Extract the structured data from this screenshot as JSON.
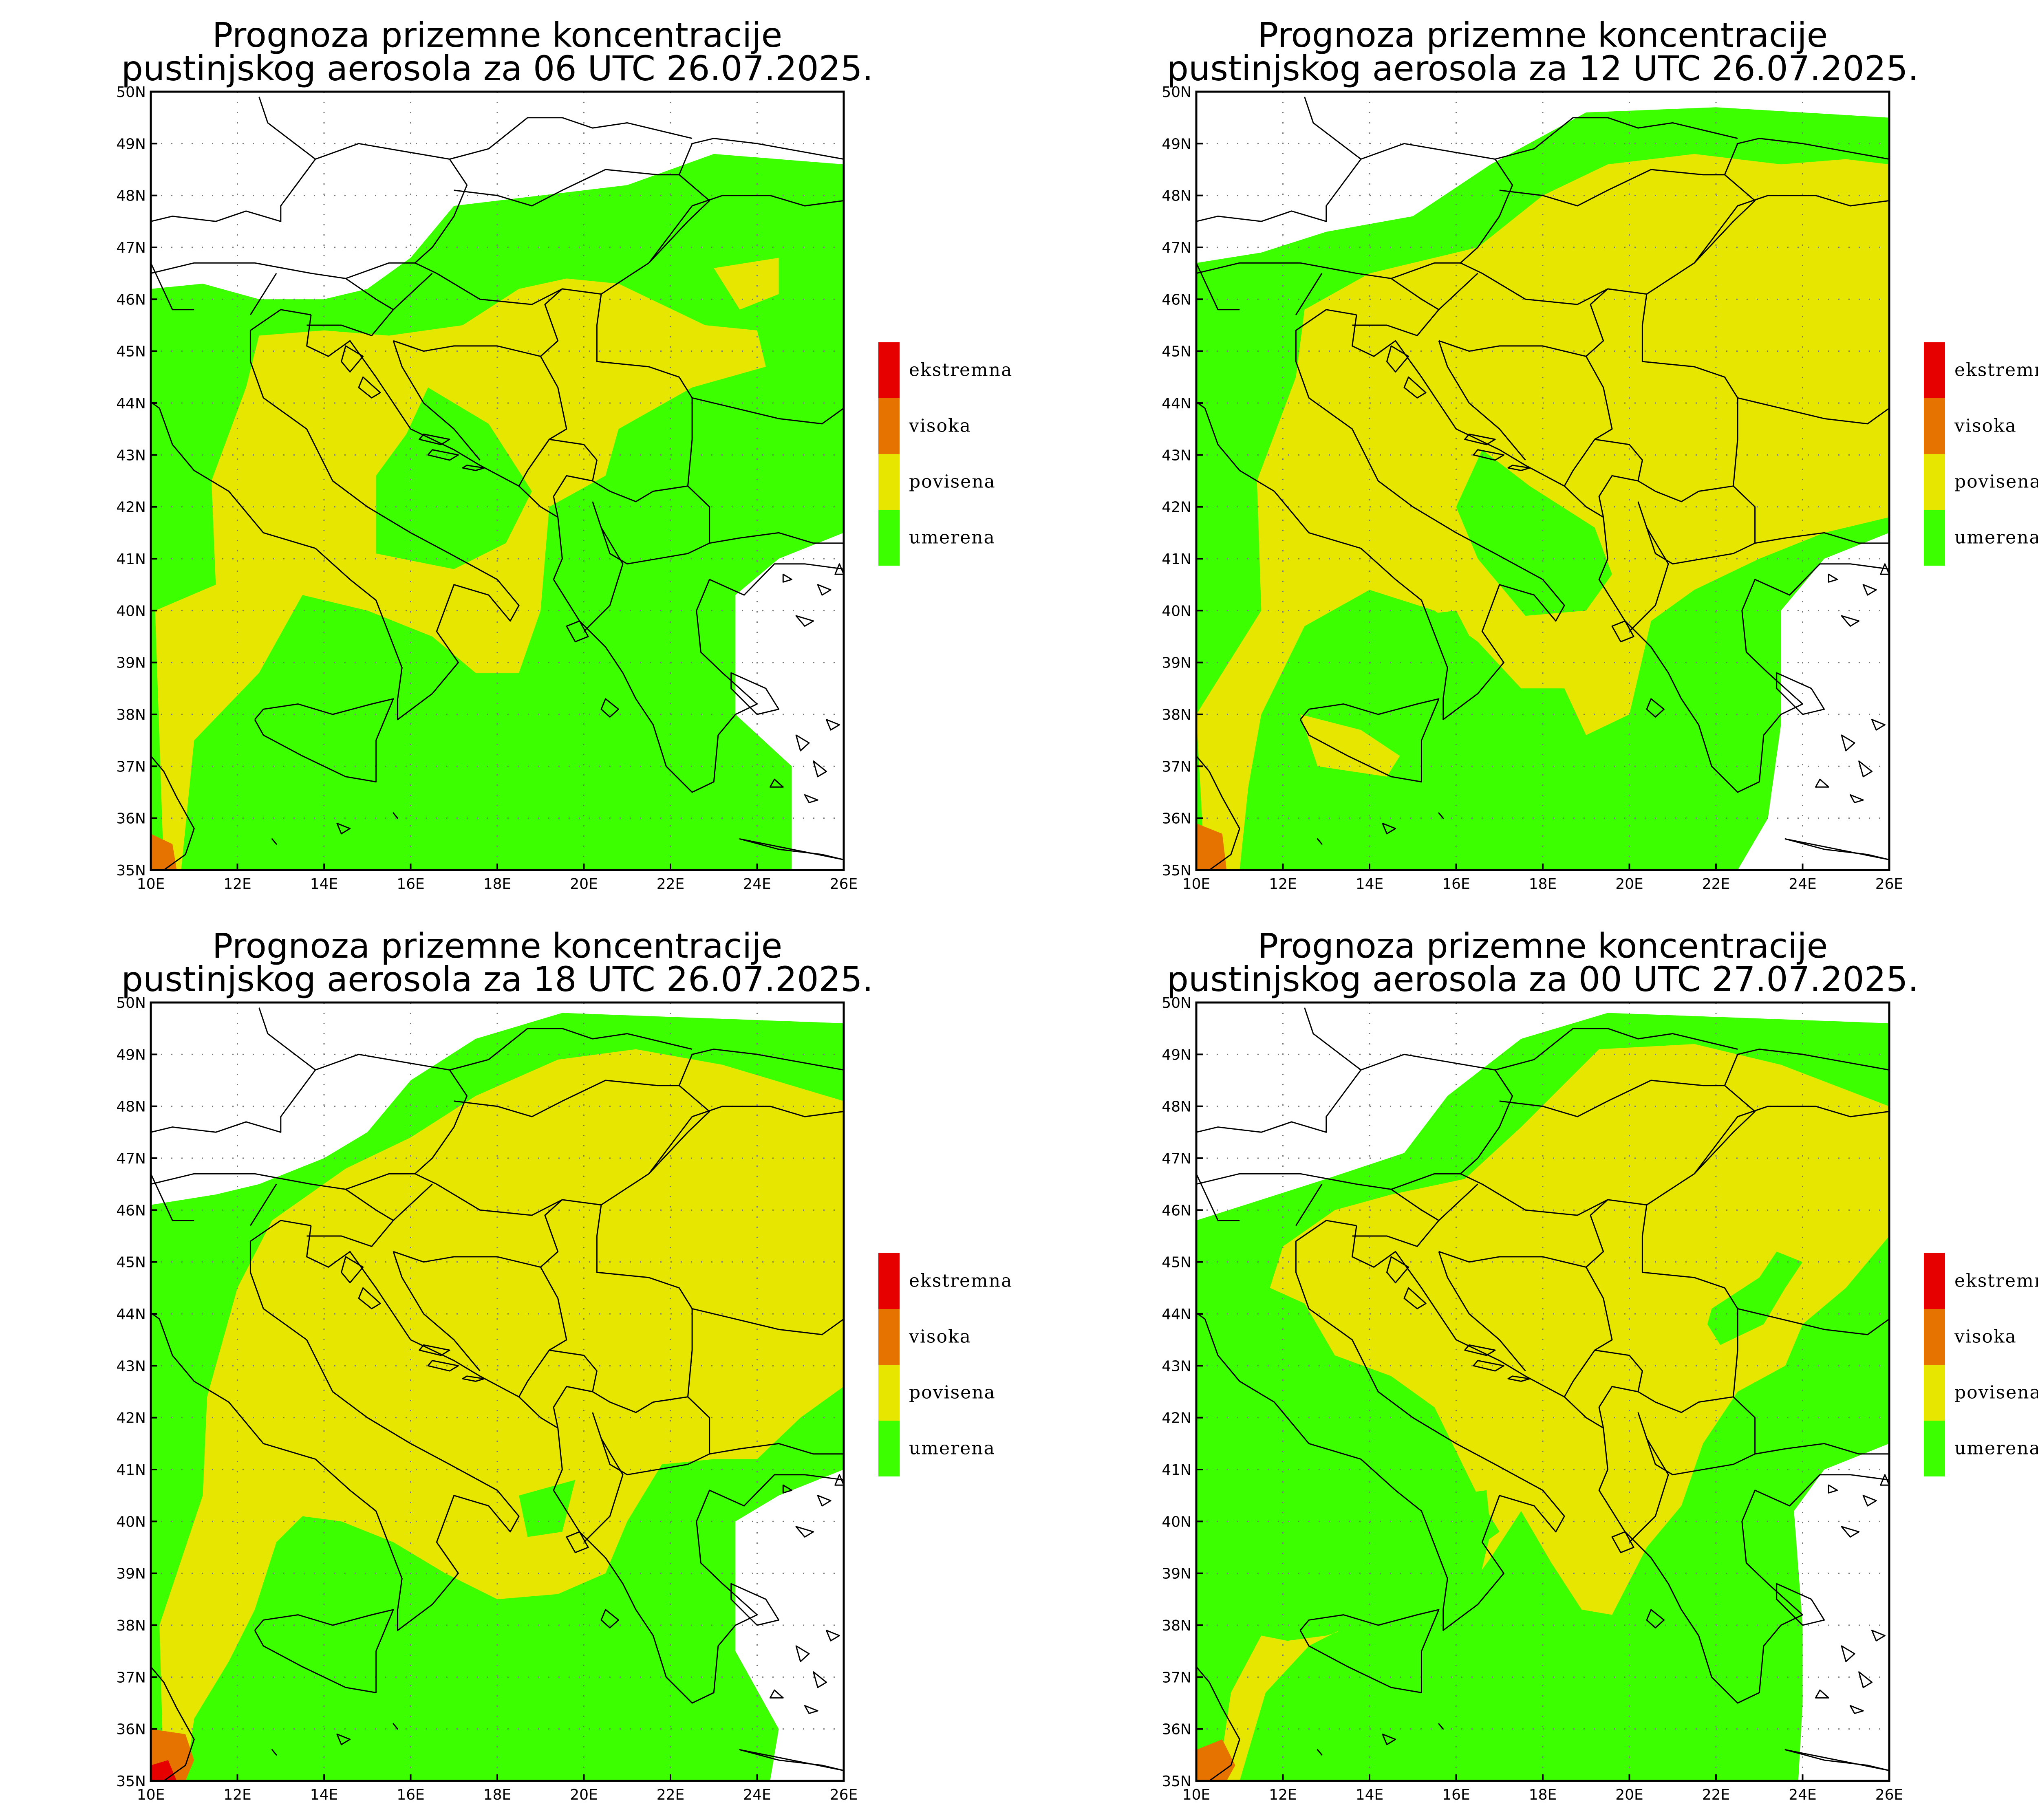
{
  "colors": {
    "ekstremna": "#e60000",
    "visoka": "#e67300",
    "povisena": "#e6e600",
    "umerena": "#3cff00"
  },
  "legend": [
    {
      "key": "ekstremna",
      "label": "ekstremna"
    },
    {
      "key": "visoka",
      "label": "visoka"
    },
    {
      "key": "povisena",
      "label": "povisena"
    },
    {
      "key": "umerena",
      "label": "umerena"
    }
  ],
  "axes": {
    "x_labels": [
      "10E",
      "12E",
      "14E",
      "16E",
      "18E",
      "20E",
      "22E",
      "24E",
      "26E"
    ],
    "y_labels": [
      "35N",
      "36N",
      "37N",
      "38N",
      "39N",
      "40N",
      "41N",
      "42N",
      "43N",
      "44N",
      "45N",
      "46N",
      "47N",
      "48N",
      "49N",
      "50N"
    ],
    "lon_range": [
      10,
      26
    ],
    "lat_range": [
      35,
      50
    ]
  },
  "panels": [
    {
      "title_line1": "Prognoza prizemne koncentracije",
      "title_line2": "pustinjskog aerosola za 06 UTC 26.07.2025."
    },
    {
      "title_line1": "Prognoza prizemne koncentracije",
      "title_line2": "pustinjskog aerosola za 12 UTC 26.07.2025."
    },
    {
      "title_line1": "Prognoza prizemne koncentracije",
      "title_line2": "pustinjskog aerosola za 18 UTC 26.07.2025."
    },
    {
      "title_line1": "Prognoza prizemne koncentracije",
      "title_line2": "pustinjskog aerosola za 00 UTC 27.07.2025."
    }
  ]
}
